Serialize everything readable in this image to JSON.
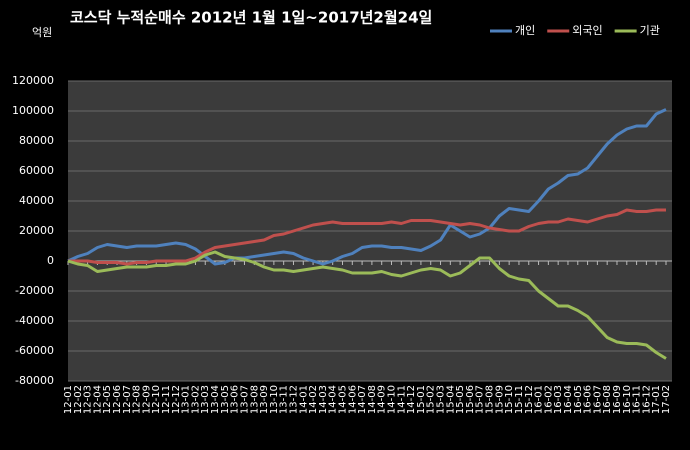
{
  "chart_data": {
    "type": "line",
    "title": "코스닥 누적순매수 2012년 1월 1일~2017년2월24일",
    "y_label": "억원",
    "categories": [
      "12-01",
      "12-02",
      "12-03",
      "12-04",
      "12-05",
      "12-06",
      "12-07",
      "12-08",
      "12-09",
      "12-10",
      "12-11",
      "12-12",
      "13-01",
      "13-02",
      "13-03",
      "13-04",
      "13-05",
      "13-06",
      "13-07",
      "13-08",
      "13-09",
      "13-10",
      "13-11",
      "13-12",
      "14-01",
      "14-02",
      "14-03",
      "14-04",
      "14-05",
      "14-06",
      "14-07",
      "14-08",
      "14-09",
      "14-10",
      "14-11",
      "14-12",
      "15-01",
      "15-02",
      "15-03",
      "15-04",
      "15-05",
      "15-06",
      "15-07",
      "15-08",
      "15-09",
      "15-10",
      "15-11",
      "15-12",
      "16-01",
      "16-02",
      "16-03",
      "16-04",
      "16-05",
      "16-06",
      "16-07",
      "16-08",
      "16-09",
      "16-10",
      "16-11",
      "16-12",
      "17-01",
      "17-02"
    ],
    "series": [
      {
        "name": "개인",
        "color": "#4f81bd",
        "values": [
          0,
          3000,
          5000,
          9000,
          11000,
          10000,
          9000,
          10000,
          10000,
          10000,
          11000,
          12000,
          11000,
          8000,
          3000,
          -2000,
          -1000,
          2000,
          2000,
          3000,
          4000,
          5000,
          6000,
          5000,
          2000,
          0,
          -2000,
          0,
          3000,
          5000,
          9000,
          10000,
          10000,
          9000,
          9000,
          8000,
          7000,
          10000,
          14000,
          24000,
          20000,
          16000,
          18000,
          22000,
          30000,
          35000,
          34000,
          33000,
          40000,
          48000,
          52000,
          57000,
          58000,
          62000,
          70000,
          78000,
          84000,
          88000,
          90000,
          90000,
          98000,
          101000
        ]
      },
      {
        "name": "외국인",
        "color": "#c0504d",
        "values": [
          0,
          0,
          0,
          -1000,
          -1000,
          -1000,
          -2000,
          -1000,
          -1000,
          0,
          0,
          0,
          0,
          2000,
          6000,
          9000,
          10000,
          11000,
          12000,
          13000,
          14000,
          17000,
          18000,
          20000,
          22000,
          24000,
          25000,
          26000,
          25000,
          25000,
          25000,
          25000,
          25000,
          26000,
          25000,
          27000,
          27000,
          27000,
          26000,
          25000,
          24000,
          25000,
          24000,
          22000,
          21000,
          20000,
          20000,
          23000,
          25000,
          26000,
          26000,
          28000,
          27000,
          26000,
          28000,
          30000,
          31000,
          34000,
          33000,
          33000,
          34000,
          34000
        ]
      },
      {
        "name": "기관",
        "color": "#9bbb59",
        "values": [
          0,
          -2000,
          -3000,
          -7000,
          -6000,
          -5000,
          -4000,
          -4000,
          -4000,
          -3000,
          -3000,
          -2000,
          -2000,
          0,
          4000,
          6000,
          3000,
          2000,
          1000,
          -1000,
          -4000,
          -6000,
          -6000,
          -7000,
          -6000,
          -5000,
          -4000,
          -5000,
          -6000,
          -8000,
          -8000,
          -8000,
          -7000,
          -9000,
          -10000,
          -8000,
          -6000,
          -5000,
          -6000,
          -10000,
          -8000,
          -3000,
          2000,
          2000,
          -5000,
          -10000,
          -12000,
          -13000,
          -20000,
          -25000,
          -30000,
          -30000,
          -33000,
          -37000,
          -44000,
          -51000,
          -54000,
          -55000,
          -55000,
          -56000,
          -61000,
          -65000
        ]
      }
    ],
    "ylim": [
      -80000,
      120000
    ],
    "yticks": [
      -80000,
      -60000,
      -40000,
      -20000,
      0,
      20000,
      40000,
      60000,
      80000,
      100000,
      120000
    ],
    "grid": true,
    "legend": "top-right"
  }
}
